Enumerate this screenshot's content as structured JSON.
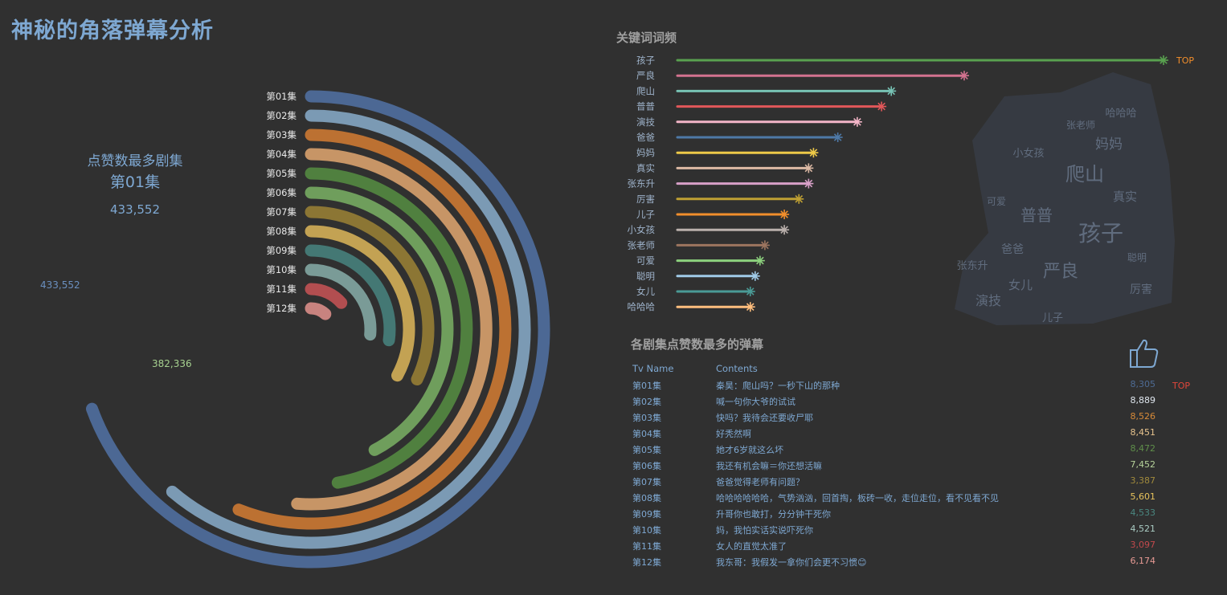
{
  "title": "神秘的角落弹幕分析",
  "summary": {
    "label": "点赞数最多剧集",
    "episode": "第01集",
    "value": "433,552"
  },
  "radial": {
    "max_label": "433,552",
    "second_label": "382,336"
  },
  "keywords": {
    "title": "关键词词频",
    "top_label": "TOP"
  },
  "comments": {
    "title": "各剧集点赞数最多的弹幕",
    "col_episode": "Tv Name",
    "col_content": "Contents",
    "top_label": "TOP",
    "rows": [
      {
        "ep": "第01集",
        "content": "秦昊：爬山吗？一秒下山的那种",
        "likes": "8,305",
        "color": "#4e6b94"
      },
      {
        "ep": "第02集",
        "content": "喊一句你大爷的试试",
        "likes": "8,889",
        "color": "#dfe6ee"
      },
      {
        "ep": "第03集",
        "content": "快吗？我待会还要收尸耶",
        "likes": "8,526",
        "color": "#d78a38"
      },
      {
        "ep": "第04集",
        "content": "好秃然啊",
        "likes": "8,451",
        "color": "#e8c48e"
      },
      {
        "ep": "第05集",
        "content": "她才6岁就这么坏",
        "likes": "8,472",
        "color": "#5f8f4a"
      },
      {
        "ep": "第06集",
        "content": "我还有机会嘛＝你还想活嘛",
        "likes": "7,452",
        "color": "#b6d39b"
      },
      {
        "ep": "第07集",
        "content": "爸爸觉得老师有问题？",
        "likes": "3,387",
        "color": "#a08a3c"
      },
      {
        "ep": "第08集",
        "content": "哈哈哈哈哈哈，气势汹汹，回首掏，板砖一收，走位走位，看不见看不见",
        "likes": "5,601",
        "color": "#e8c35c"
      },
      {
        "ep": "第09集",
        "content": "升哥你也敢打，分分钟干死你",
        "likes": "4,533",
        "color": "#4a8780"
      },
      {
        "ep": "第10集",
        "content": "妈，我怕实话实说吓死你",
        "likes": "4,521",
        "color": "#a9cbc3"
      },
      {
        "ep": "第11集",
        "content": "女人的直觉太准了",
        "likes": "3,097",
        "color": "#c2494c"
      },
      {
        "ep": "第12集",
        "content": "我东哥：我假发一拿你们会更不习惯😊",
        "likes": "6,174",
        "color": "#e79a94"
      }
    ]
  },
  "chart_data": [
    {
      "type": "radial-bar",
      "title": "点赞数最多剧集",
      "categories": [
        "第01集",
        "第02集",
        "第03集",
        "第04集",
        "第05集",
        "第06集",
        "第07集",
        "第08集",
        "第09集",
        "第10集",
        "第11集",
        "第12集"
      ],
      "values": [
        433552,
        382336,
        350000,
        320000,
        295000,
        264000,
        200000,
        205000,
        170000,
        165000,
        85000,
        75000
      ],
      "colors": [
        "#4c6894",
        "#7b9ab4",
        "#bc7132",
        "#c79566",
        "#50803f",
        "#6f9e5c",
        "#8c7634",
        "#c3a253",
        "#447874",
        "#7a9b97",
        "#b24e50",
        "#c8837f"
      ]
    },
    {
      "type": "lollipop",
      "title": "关键词词频",
      "categories": [
        "孩子",
        "严良",
        "爬山",
        "普普",
        "演技",
        "爸爸",
        "妈妈",
        "真实",
        "张东升",
        "厉害",
        "儿子",
        "小女孩",
        "张老师",
        "可爱",
        "聪明",
        "女儿",
        "哈哈哈"
      ],
      "values": [
        100,
        59,
        44,
        42,
        37,
        33,
        28,
        27,
        27,
        25,
        22,
        22,
        18,
        17,
        16,
        15,
        15
      ],
      "colors": [
        "#59a14f",
        "#d3728f",
        "#77c2b4",
        "#e15759",
        "#f4b6c8",
        "#4e79a7",
        "#edc948",
        "#dcb9a4",
        "#d8a0c8",
        "#bfa033",
        "#f28e2b",
        "#bab0ac",
        "#9c755f",
        "#8cd17d",
        "#a0cbe8",
        "#4a9b96",
        "#ffbe7d"
      ]
    },
    {
      "type": "table",
      "title": "各剧集点赞数最多的弹幕",
      "categories": [
        "第01集",
        "第02集",
        "第03集",
        "第04集",
        "第05集",
        "第06集",
        "第07集",
        "第08集",
        "第09集",
        "第10集",
        "第11集",
        "第12集"
      ],
      "values": [
        8305,
        8889,
        8526,
        8451,
        8472,
        7452,
        3387,
        5601,
        4533,
        4521,
        3097,
        6174
      ]
    }
  ]
}
